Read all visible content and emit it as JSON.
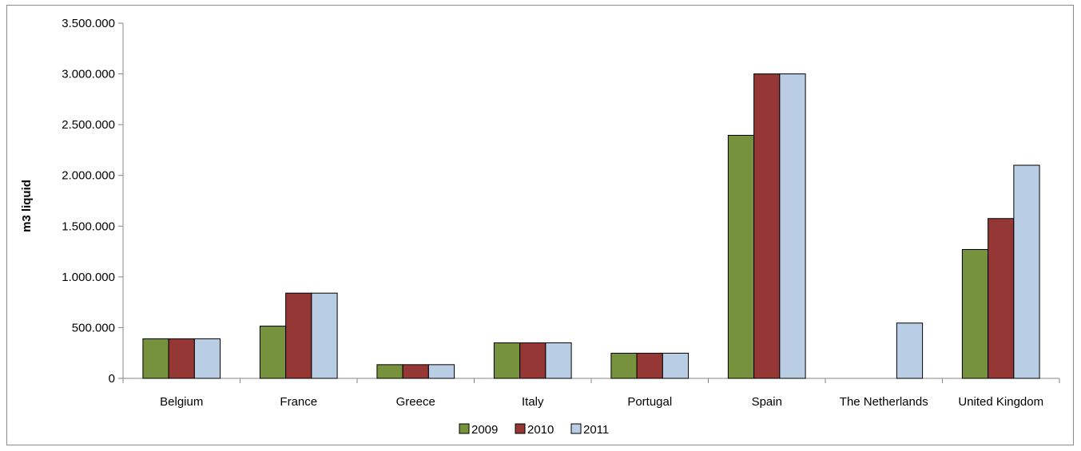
{
  "chart_data": {
    "type": "bar",
    "categories": [
      "Belgium",
      "France",
      "Greece",
      "Italy",
      "Portugal",
      "Spain",
      "The Netherlands",
      "United Kingdom"
    ],
    "series": [
      {
        "name": "2009",
        "color": "#76923c",
        "values": [
          390000,
          515000,
          135000,
          350000,
          248000,
          2395000,
          0,
          1270000
        ]
      },
      {
        "name": "2010",
        "color": "#953735",
        "values": [
          390000,
          840000,
          135000,
          350000,
          248000,
          3000000,
          0,
          1575000
        ]
      },
      {
        "name": "2011",
        "color": "#b9cde5",
        "values": [
          390000,
          840000,
          135000,
          350000,
          248000,
          3000000,
          545000,
          2100000
        ]
      }
    ],
    "xlabel": "",
    "ylabel": "m3 liquid",
    "ylim": [
      0,
      3500000
    ],
    "yticks": [
      0,
      500000,
      1000000,
      1500000,
      2000000,
      2500000,
      3000000,
      3500000
    ],
    "ytick_labels": [
      "0",
      "500.000",
      "1.000.000",
      "1.500.000",
      "2.000.000",
      "2.500.000",
      "3.000.000",
      "3.500.000"
    ],
    "grid": false,
    "legend_position": "bottom"
  }
}
